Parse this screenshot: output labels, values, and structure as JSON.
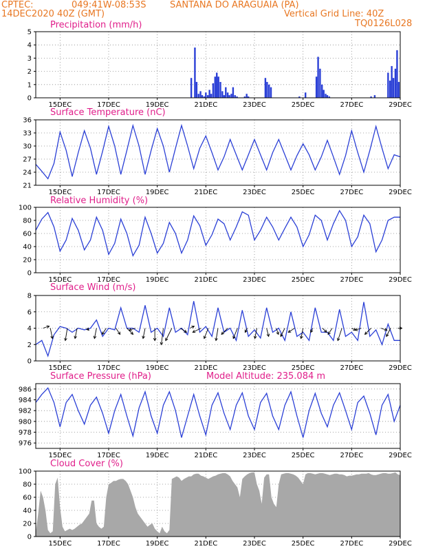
{
  "header": {
    "line1_left": "CPTEC:",
    "line1_coords": "049:41W-08:53S",
    "line1_place": "SANTANA DO ARAGUAIA (PA)",
    "line2_left": "14DEC2020 40Z (GMT)",
    "line2_right": "Vertical Grid Line: 40Z",
    "line3_right": "TQ0126L028"
  },
  "colors": {
    "header": "#e87722",
    "title": "#e01e8a",
    "line": "#2a3fd6",
    "cloud": "#a8a8a8",
    "arrow": "#000000"
  },
  "x_ticks": [
    "15DEC",
    "17DEC",
    "19DEC",
    "21DEC",
    "23DEC",
    "25DEC",
    "27DEC",
    "29DEC"
  ],
  "panels": {
    "precip": {
      "title": "Precipitation (mm/h)"
    },
    "temp": {
      "title": "Surface Temperature (nC)"
    },
    "rh": {
      "title": "Relative Humidity (%)"
    },
    "wind": {
      "title": "Surface Wind (m/s)"
    },
    "press": {
      "title": "Surface Pressure (hPa)",
      "extra": "Model Altitude: 235.084 m"
    },
    "cloud": {
      "title": "Cloud Cover (%)"
    }
  },
  "chart_data": [
    {
      "id": "precip",
      "type": "bar",
      "title": "Precipitation (mm/h)",
      "x_unit": "days",
      "x_range": [
        14.0,
        29.0
      ],
      "ylim": [
        0,
        5
      ],
      "yticks": [
        0,
        1,
        2,
        3,
        4,
        5
      ],
      "x": [
        20.4,
        20.55,
        20.62,
        20.7,
        20.78,
        20.85,
        20.93,
        21.0,
        21.08,
        21.15,
        21.22,
        21.3,
        21.38,
        21.45,
        21.52,
        21.6,
        21.68,
        21.75,
        21.82,
        21.9,
        21.97,
        22.05,
        22.12,
        22.2,
        22.28,
        22.6,
        22.68,
        22.75,
        23.45,
        23.52,
        23.6,
        23.68,
        24.85,
        25.1,
        25.55,
        25.62,
        25.7,
        25.78,
        25.85,
        25.93,
        26.0,
        26.08,
        27.8,
        27.95,
        28.5,
        28.58,
        28.65,
        28.72,
        28.8,
        28.87,
        28.94
      ],
      "values": [
        1.5,
        3.8,
        1.2,
        0.3,
        0.5,
        0.2,
        0.1,
        0.4,
        0.2,
        0.6,
        0.3,
        1.1,
        1.6,
        1.9,
        1.6,
        1.2,
        0.5,
        0.2,
        0.8,
        0.4,
        0.2,
        0.3,
        0.8,
        0.2,
        0.1,
        0.1,
        0.3,
        0.1,
        1.5,
        1.2,
        1.0,
        0.8,
        0.1,
        0.4,
        1.6,
        3.1,
        2.2,
        1.0,
        0.6,
        0.3,
        0.2,
        0.1,
        0.1,
        0.2,
        1.9,
        1.3,
        2.4,
        1.5,
        2.2,
        3.6,
        1.2
      ]
    },
    {
      "id": "temp",
      "type": "line",
      "title": "Surface Temperature (nC)",
      "x_unit": "days",
      "x_range": [
        14.0,
        29.0
      ],
      "ylim": [
        21,
        36
      ],
      "yticks": [
        21,
        24,
        27,
        30,
        33,
        36
      ],
      "x": [
        14.0,
        14.25,
        14.5,
        14.75,
        15.0,
        15.25,
        15.5,
        15.75,
        16.0,
        16.25,
        16.5,
        16.75,
        17.0,
        17.25,
        17.5,
        17.75,
        18.0,
        18.25,
        18.5,
        18.75,
        19.0,
        19.25,
        19.5,
        19.75,
        20.0,
        20.25,
        20.5,
        20.75,
        21.0,
        21.25,
        21.5,
        21.75,
        22.0,
        22.25,
        22.5,
        22.75,
        23.0,
        23.25,
        23.5,
        23.75,
        24.0,
        24.25,
        24.5,
        24.75,
        25.0,
        25.25,
        25.5,
        25.75,
        26.0,
        26.25,
        26.5,
        26.75,
        27.0,
        27.25,
        27.5,
        27.75,
        28.0,
        28.25,
        28.5,
        28.75,
        29.0
      ],
      "values": [
        25.8,
        24.2,
        22.5,
        26.0,
        33.2,
        29.0,
        23.0,
        28.5,
        33.5,
        29.5,
        23.5,
        28.8,
        34.5,
        30.0,
        23.5,
        29.0,
        34.7,
        30.0,
        23.5,
        29.0,
        34.0,
        30.0,
        24.0,
        29.5,
        34.7,
        30.0,
        24.8,
        29.5,
        32.3,
        28.5,
        24.5,
        27.5,
        31.5,
        28.0,
        24.5,
        28.0,
        31.5,
        28.0,
        24.5,
        28.5,
        31.5,
        28.0,
        24.5,
        27.8,
        30.5,
        28.0,
        24.5,
        27.5,
        31.3,
        27.5,
        23.5,
        27.8,
        33.5,
        28.5,
        24.0,
        29.0,
        34.5,
        29.5,
        24.8,
        28.0,
        27.5
      ]
    },
    {
      "id": "rh",
      "type": "line",
      "title": "Relative Humidity (%)",
      "x_unit": "days",
      "x_range": [
        14.0,
        29.0
      ],
      "ylim": [
        0,
        100
      ],
      "yticks": [
        0,
        20,
        40,
        60,
        80,
        100
      ],
      "x": [
        14.0,
        14.25,
        14.5,
        14.75,
        15.0,
        15.25,
        15.5,
        15.75,
        16.0,
        16.25,
        16.5,
        16.75,
        17.0,
        17.25,
        17.5,
        17.75,
        18.0,
        18.25,
        18.5,
        18.75,
        19.0,
        19.25,
        19.5,
        19.75,
        20.0,
        20.25,
        20.5,
        20.75,
        21.0,
        21.25,
        21.5,
        21.75,
        22.0,
        22.25,
        22.5,
        22.75,
        23.0,
        23.25,
        23.5,
        23.75,
        24.0,
        24.25,
        24.5,
        24.75,
        25.0,
        25.25,
        25.5,
        25.75,
        26.0,
        26.25,
        26.5,
        26.75,
        27.0,
        27.25,
        27.5,
        27.75,
        28.0,
        28.25,
        28.5,
        28.75,
        29.0
      ],
      "values": [
        65.0,
        82.0,
        92.0,
        70.0,
        33.0,
        50.0,
        83.0,
        65.0,
        35.0,
        50.0,
        85.0,
        65.0,
        28.0,
        45.0,
        82.0,
        60.0,
        26.0,
        42.0,
        85.0,
        60.0,
        30.0,
        45.0,
        77.0,
        60.0,
        30.0,
        50.0,
        87.0,
        72.0,
        42.0,
        58.0,
        82.0,
        75.0,
        50.0,
        70.0,
        93.0,
        88.0,
        50.0,
        65.0,
        85.0,
        70.0,
        50.0,
        68.0,
        85.0,
        70.0,
        40.0,
        58.0,
        88.0,
        80.0,
        50.0,
        75.0,
        95.0,
        80.0,
        40.0,
        55.0,
        88.0,
        75.0,
        32.0,
        50.0,
        80.0,
        85.0,
        85.0
      ]
    },
    {
      "id": "wind",
      "type": "line",
      "title": "Surface Wind (m/s)",
      "x_unit": "days",
      "x_range": [
        14.0,
        29.0
      ],
      "ylim": [
        0,
        8
      ],
      "yticks": [
        0,
        2,
        4,
        6,
        8
      ],
      "x": [
        14.0,
        14.25,
        14.5,
        14.75,
        15.0,
        15.25,
        15.5,
        15.75,
        16.0,
        16.25,
        16.5,
        16.75,
        17.0,
        17.25,
        17.5,
        17.75,
        18.0,
        18.25,
        18.5,
        18.75,
        19.0,
        19.25,
        19.5,
        19.75,
        20.0,
        20.25,
        20.5,
        20.75,
        21.0,
        21.25,
        21.5,
        21.75,
        22.0,
        22.25,
        22.5,
        22.75,
        23.0,
        23.25,
        23.5,
        23.75,
        24.0,
        24.25,
        24.5,
        24.75,
        25.0,
        25.25,
        25.5,
        25.75,
        26.0,
        26.25,
        26.5,
        26.75,
        27.0,
        27.25,
        27.5,
        27.75,
        28.0,
        28.25,
        28.5,
        28.75,
        29.0
      ],
      "values": [
        2.0,
        2.5,
        0.6,
        3.2,
        4.2,
        4.0,
        3.5,
        4.0,
        3.8,
        4.0,
        5.0,
        3.0,
        4.0,
        3.8,
        6.5,
        4.0,
        4.0,
        3.5,
        6.8,
        3.5,
        4.0,
        3.0,
        6.5,
        3.5,
        4.0,
        3.2,
        7.3,
        3.5,
        4.2,
        3.0,
        6.5,
        3.5,
        4.0,
        2.5,
        6.2,
        3.0,
        3.8,
        2.8,
        6.5,
        3.5,
        4.0,
        2.5,
        6.0,
        3.0,
        3.5,
        2.5,
        6.5,
        3.5,
        3.5,
        2.5,
        6.3,
        3.0,
        3.5,
        2.5,
        7.2,
        3.0,
        3.8,
        2.0,
        4.5,
        2.5,
        2.5
      ],
      "arrows": {
        "x": [
          14.3,
          14.6,
          15.3,
          15.7,
          16.1,
          16.5,
          16.9,
          17.3,
          17.75,
          18.1,
          18.5,
          18.9,
          19.25,
          19.6,
          19.95,
          20.35,
          20.8,
          21.1,
          21.5,
          21.9,
          22.3,
          22.7,
          23.1,
          23.5,
          23.9,
          24.25,
          24.65,
          25.0,
          25.4,
          25.8,
          26.2,
          26.6,
          27.0,
          27.4,
          27.8,
          28.2,
          28.6,
          28.9
        ],
        "u": [
          1.5,
          0.5,
          -0.5,
          -0.5,
          0.5,
          -0.5,
          -1.0,
          1.0,
          1.5,
          -1.5,
          -0.5,
          0.0,
          -0.5,
          -1.5,
          1.5,
          1.0,
          -2.0,
          -1.0,
          -0.5,
          -1.5,
          -1.0,
          -0.5,
          -0.5,
          0.5,
          0.5,
          -1.0,
          -1.5,
          -0.5,
          -0.5,
          1.0,
          -1.0,
          -1.0,
          1.0,
          -1.5,
          -1.5,
          1.5,
          -1.0,
          1.0
        ],
        "v": [
          0.5,
          -2.5,
          -3.0,
          -2.5,
          -0.5,
          -2.5,
          -1.5,
          -1.5,
          -1.5,
          -0.5,
          -2.5,
          -3.0,
          -4.0,
          -3.0,
          -1.0,
          0.5,
          -1.0,
          -2.5,
          -3.0,
          -1.5,
          -2.5,
          -1.0,
          -2.5,
          -2.0,
          -1.5,
          -2.0,
          -1.0,
          -2.5,
          -1.0,
          -1.0,
          -1.5,
          -3.0,
          -0.5,
          -0.5,
          -1.5,
          -0.5,
          -2.0,
          0.0
        ]
      }
    },
    {
      "id": "press",
      "type": "line",
      "title": "Surface Pressure (hPa)",
      "x_unit": "days",
      "x_range": [
        14.0,
        29.0
      ],
      "ylim": [
        975,
        987
      ],
      "yticks": [
        976,
        978,
        980,
        982,
        984,
        986
      ],
      "x": [
        14.0,
        14.25,
        14.5,
        14.75,
        15.0,
        15.25,
        15.5,
        15.75,
        16.0,
        16.25,
        16.5,
        16.75,
        17.0,
        17.25,
        17.5,
        17.75,
        18.0,
        18.25,
        18.5,
        18.75,
        19.0,
        19.25,
        19.5,
        19.75,
        20.0,
        20.25,
        20.5,
        20.75,
        21.0,
        21.25,
        21.5,
        21.75,
        22.0,
        22.25,
        22.5,
        22.75,
        23.0,
        23.25,
        23.5,
        23.75,
        24.0,
        24.25,
        24.5,
        24.75,
        25.0,
        25.25,
        25.5,
        25.75,
        26.0,
        26.25,
        26.5,
        26.75,
        27.0,
        27.25,
        27.5,
        27.75,
        28.0,
        28.25,
        28.5,
        28.75,
        29.0
      ],
      "values": [
        983.5,
        985.0,
        986.2,
        983.5,
        979.0,
        983.5,
        985.0,
        982.0,
        979.5,
        983.0,
        984.5,
        981.5,
        977.8,
        982.0,
        985.0,
        981.0,
        977.3,
        982.5,
        985.5,
        981.0,
        977.8,
        983.0,
        985.5,
        982.0,
        977.0,
        981.0,
        985.0,
        981.0,
        977.5,
        983.0,
        985.3,
        981.5,
        978.5,
        983.0,
        985.3,
        981.0,
        978.5,
        983.5,
        985.2,
        981.0,
        978.5,
        983.0,
        985.5,
        981.0,
        977.0,
        982.0,
        985.2,
        981.5,
        979.0,
        983.0,
        985.3,
        982.0,
        978.5,
        983.5,
        984.7,
        981.5,
        977.5,
        983.0,
        985.0,
        980.0,
        983.0
      ]
    },
    {
      "id": "cloud",
      "type": "area",
      "title": "Cloud Cover (%)",
      "x_unit": "days",
      "x_range": [
        14.0,
        29.0
      ],
      "ylim": [
        0,
        100
      ],
      "yticks": [
        0,
        20,
        40,
        60,
        80,
        100
      ],
      "x": [
        14.0,
        14.1,
        14.2,
        14.3,
        14.4,
        14.5,
        14.6,
        14.7,
        14.8,
        14.9,
        15.0,
        15.1,
        15.2,
        15.3,
        15.4,
        15.5,
        15.6,
        15.7,
        15.8,
        15.9,
        16.0,
        16.1,
        16.2,
        16.3,
        16.4,
        16.5,
        16.6,
        16.7,
        16.8,
        16.9,
        17.0,
        17.1,
        17.2,
        17.3,
        17.4,
        17.5,
        17.6,
        17.7,
        17.8,
        17.9,
        18.0,
        18.1,
        18.2,
        18.3,
        18.4,
        18.5,
        18.6,
        18.7,
        18.8,
        18.9,
        19.0,
        19.1,
        19.2,
        19.3,
        19.4,
        19.5,
        19.6,
        19.7,
        19.8,
        19.9,
        20.0,
        20.1,
        20.2,
        20.3,
        20.4,
        20.5,
        20.6,
        20.7,
        20.8,
        20.9,
        21.0,
        21.1,
        21.2,
        21.3,
        21.4,
        21.5,
        21.6,
        21.7,
        21.8,
        21.9,
        22.0,
        22.1,
        22.2,
        22.3,
        22.4,
        22.5,
        22.6,
        22.7,
        22.8,
        22.9,
        23.0,
        23.1,
        23.2,
        23.3,
        23.4,
        23.5,
        23.6,
        23.7,
        23.8,
        23.9,
        24.0,
        24.1,
        24.2,
        24.3,
        24.4,
        24.5,
        24.6,
        24.7,
        24.8,
        24.9,
        25.0,
        25.1,
        25.2,
        25.3,
        25.4,
        25.5,
        25.6,
        25.7,
        25.8,
        25.9,
        26.0,
        26.1,
        26.2,
        26.3,
        26.4,
        26.5,
        26.6,
        26.7,
        26.8,
        26.9,
        27.0,
        27.1,
        27.2,
        27.3,
        27.4,
        27.5,
        27.6,
        27.7,
        27.8,
        27.9,
        28.0,
        28.1,
        28.2,
        28.3,
        28.4,
        28.5,
        28.6,
        28.7,
        28.8,
        28.9,
        29.0
      ],
      "values": [
        5,
        35,
        70,
        60,
        40,
        10,
        5,
        8,
        80,
        90,
        45,
        15,
        8,
        10,
        12,
        10,
        12,
        15,
        18,
        20,
        25,
        30,
        35,
        55,
        55,
        20,
        15,
        12,
        15,
        60,
        80,
        82,
        85,
        85,
        87,
        88,
        88,
        85,
        80,
        70,
        60,
        45,
        35,
        30,
        25,
        20,
        15,
        18,
        20,
        12,
        8,
        5,
        15,
        8,
        5,
        10,
        88,
        90,
        92,
        90,
        85,
        88,
        90,
        92,
        92,
        95,
        96,
        96,
        93,
        92,
        90,
        88,
        90,
        92,
        93,
        95,
        96,
        97,
        97,
        95,
        92,
        85,
        80,
        75,
        60,
        88,
        92,
        95,
        97,
        98,
        98,
        80,
        70,
        50,
        90,
        95,
        95,
        60,
        50,
        45,
        80,
        95,
        96,
        97,
        97,
        96,
        95,
        93,
        90,
        85,
        80,
        95,
        97,
        97,
        96,
        95,
        96,
        97,
        97,
        96,
        95,
        94,
        95,
        96,
        96,
        95,
        95,
        94,
        92,
        93,
        93,
        94,
        95,
        95,
        96,
        96,
        96,
        97,
        95,
        94,
        94,
        95,
        96,
        97,
        97,
        96,
        96,
        97,
        98,
        95,
        94
      ]
    }
  ]
}
